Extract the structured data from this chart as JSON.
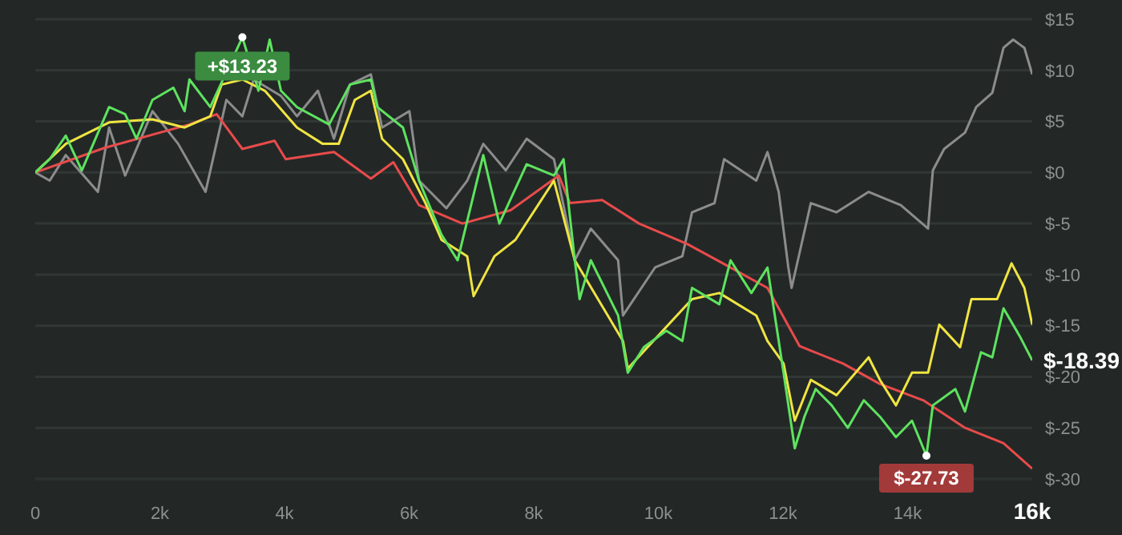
{
  "chart_data": {
    "type": "line",
    "xlim": [
      0,
      16000
    ],
    "ylim": [
      -30,
      15
    ],
    "xticks": [
      {
        "value": 0,
        "label": "0"
      },
      {
        "value": 2000,
        "label": "2k"
      },
      {
        "value": 4000,
        "label": "4k"
      },
      {
        "value": 6000,
        "label": "6k"
      },
      {
        "value": 8000,
        "label": "8k"
      },
      {
        "value": 10000,
        "label": "10k"
      },
      {
        "value": 12000,
        "label": "12k"
      },
      {
        "value": 14000,
        "label": "14k"
      },
      {
        "value": 16000,
        "label": "16k"
      }
    ],
    "yticks": [
      {
        "value": 15,
        "label": "$15"
      },
      {
        "value": 10,
        "label": "$10"
      },
      {
        "value": 5,
        "label": "$5"
      },
      {
        "value": 0,
        "label": "$0"
      },
      {
        "value": -5,
        "label": "$-5"
      },
      {
        "value": -10,
        "label": "$-10"
      },
      {
        "value": -15,
        "label": "$-15"
      },
      {
        "value": -20,
        "label": "$-20"
      },
      {
        "value": -25,
        "label": "$-25"
      },
      {
        "value": -30,
        "label": "$-30"
      }
    ],
    "grid": "y",
    "marker": "none",
    "line_style": "solid",
    "series": [
      {
        "color": "#8c8c8c",
        "x": [
          0,
          232,
          490,
          1005,
          1185,
          1443,
          1881,
          2294,
          2732,
          3067,
          3324,
          3505,
          3943,
          4200,
          4536,
          4793,
          5051,
          5386,
          5566,
          6004,
          6159,
          6597,
          6932,
          7190,
          7551,
          7886,
          8324,
          8659,
          8916,
          9354,
          9432,
          9947,
          10385,
          10540,
          10901,
          11055,
          11571,
          11751,
          11931,
          12086,
          12138,
          12447,
          12859,
          13375,
          13890,
          14328,
          14405,
          14586,
          14921,
          15101,
          15359,
          15539,
          15694,
          15874,
          16000
        ],
        "values": [
          0,
          -0.8,
          1.7,
          -1.9,
          4.4,
          -0.3,
          6,
          2.8,
          -1.9,
          7.1,
          5.5,
          9.1,
          7.5,
          5.5,
          8,
          3.3,
          8.6,
          9.6,
          4.4,
          6,
          -0.8,
          -3.5,
          -0.8,
          2.8,
          0.2,
          3.3,
          1.3,
          -8.6,
          -5.5,
          -8.6,
          -14,
          -9.3,
          -8.2,
          -3.9,
          -3,
          1.3,
          -0.8,
          2,
          -1.9,
          -9.3,
          -11.3,
          -3,
          -3.9,
          -1.9,
          -3.2,
          -5.5,
          0.2,
          2.3,
          3.9,
          6.4,
          7.8,
          12.2,
          13,
          12.2,
          9.6
        ]
      },
      {
        "color": "#e84b4b",
        "x": [
          0,
          1108,
          2474,
          2912,
          3324,
          3840,
          4020,
          4793,
          5386,
          5747,
          6159,
          6855,
          7628,
          8401,
          8581,
          9097,
          9690,
          10463,
          10978,
          11751,
          12267,
          12962,
          13555,
          14251,
          14921,
          15539,
          16000
        ],
        "values": [
          0,
          2.4,
          4.7,
          5.7,
          2.3,
          3.1,
          1.3,
          2,
          -0.6,
          1,
          -3.2,
          -5,
          -3.7,
          -0.3,
          -3,
          -2.7,
          -5,
          -7,
          -8.7,
          -11.3,
          -17,
          -18.7,
          -20.7,
          -22.3,
          -25,
          -26.5,
          -29
        ]
      },
      {
        "color": "#f0e442",
        "x": [
          0,
          490,
          1185,
          1881,
          2397,
          2809,
          2989,
          3324,
          3685,
          4200,
          4613,
          4870,
          5128,
          5386,
          5566,
          5901,
          6262,
          6520,
          6932,
          7035,
          7370,
          7705,
          8324,
          8659,
          9432,
          9509,
          10540,
          10978,
          11571,
          11751,
          12009,
          12189,
          12447,
          12859,
          13220,
          13375,
          13555,
          13813,
          14070,
          14328,
          14508,
          14843,
          15024,
          15436,
          15668,
          15874,
          16000
        ],
        "values": [
          0,
          2.8,
          4.9,
          5.2,
          4.4,
          5.5,
          8.6,
          9.1,
          8,
          4.4,
          2.8,
          2.8,
          7.1,
          8,
          3.3,
          1.3,
          -3,
          -6.6,
          -8.2,
          -12.1,
          -8.2,
          -6.6,
          -0.8,
          -8.6,
          -16.5,
          -19.2,
          -12.4,
          -11.8,
          -14,
          -16.5,
          -18.7,
          -24.3,
          -20.3,
          -21.8,
          -19.2,
          -18.1,
          -20.3,
          -22.8,
          -19.6,
          -19.6,
          -14.9,
          -17.1,
          -12.4,
          -12.4,
          -8.9,
          -11.3,
          -14.9
        ]
      },
      {
        "color": "#5ee35e",
        "x": [
          0,
          232,
          490,
          747,
          1185,
          1443,
          1624,
          1881,
          2216,
          2397,
          2474,
          2809,
          3324,
          3582,
          3762,
          3943,
          4200,
          4716,
          5051,
          5386,
          5489,
          5901,
          6159,
          6520,
          6778,
          7190,
          7448,
          7886,
          8324,
          8478,
          8659,
          8736,
          8916,
          9354,
          9509,
          9767,
          10128,
          10385,
          10540,
          10978,
          11158,
          11493,
          11751,
          12009,
          12189,
          12344,
          12524,
          12782,
          13040,
          13297,
          13555,
          13813,
          14070,
          14302,
          14405,
          14766,
          14921,
          15178,
          15359,
          15539,
          15797,
          16000
        ],
        "values": [
          0,
          1.3,
          3.6,
          0.2,
          6.4,
          5.7,
          3.3,
          7.1,
          8.3,
          6,
          9.1,
          6.4,
          13.23,
          8,
          13,
          8,
          6.4,
          4.7,
          8.6,
          9.1,
          6.4,
          4.4,
          -0.8,
          -6.1,
          -8.6,
          1.7,
          -5,
          0.8,
          -0.3,
          1.3,
          -8.6,
          -12.4,
          -8.6,
          -14,
          -19.6,
          -17.1,
          -15.5,
          -16.5,
          -11.3,
          -12.9,
          -8.6,
          -11.8,
          -9.3,
          -19.6,
          -27,
          -23.9,
          -21.2,
          -22.8,
          -25,
          -22.3,
          -23.9,
          -25.9,
          -24.3,
          -27.73,
          -22.8,
          -21.2,
          -23.4,
          -17.6,
          -18.1,
          -13.3,
          -16,
          -18.39
        ]
      }
    ],
    "annotations": [
      {
        "text": "+$13.23",
        "x": 3324,
        "y": 13.23
      },
      {
        "text": "$-27.73",
        "x": 14302,
        "y": -27.73
      },
      {
        "text": "$-18.39",
        "x": 16000,
        "y": -18.39
      }
    ]
  }
}
